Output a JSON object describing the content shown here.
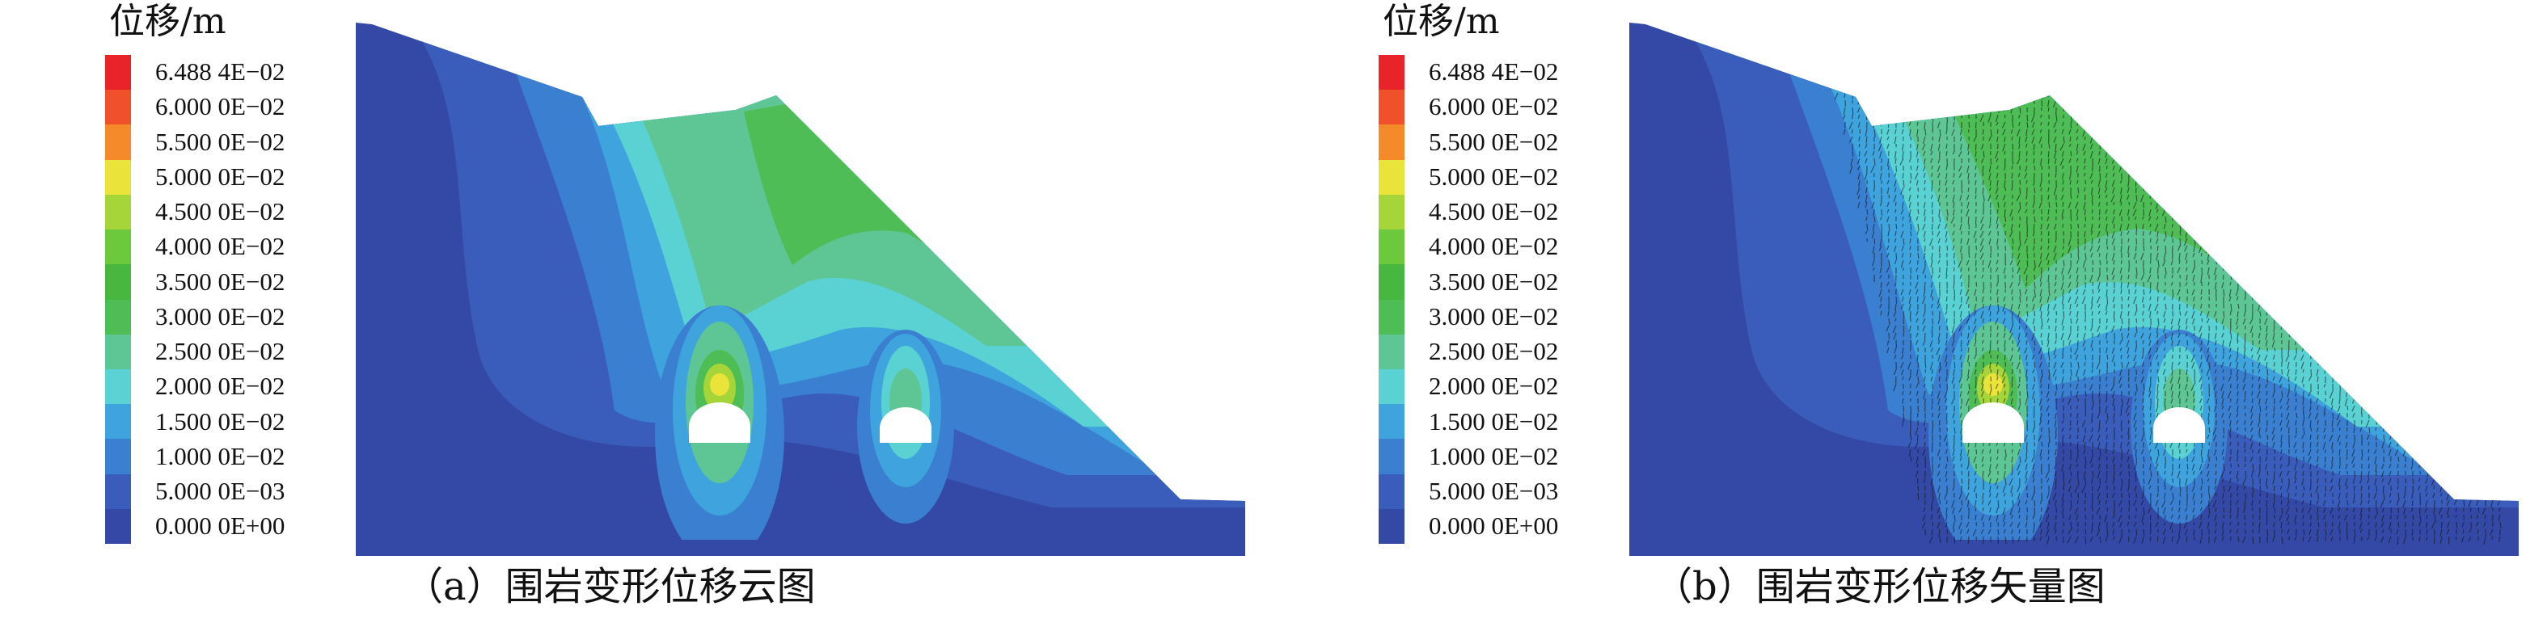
{
  "legend": {
    "title": "位移/m",
    "labels": [
      "6.488 4E−02",
      "6.000 0E−02",
      "5.500 0E−02",
      "5.000 0E−02",
      "4.500 0E−02",
      "4.000 0E−02",
      "3.500 0E−02",
      "3.000 0E−02",
      "2.500 0E−02",
      "2.000 0E−02",
      "1.500 0E−02",
      "1.000 0E−02",
      "5.000 0E−03",
      "0.000 0E+00"
    ],
    "colors": [
      "#e8232a",
      "#f0502a",
      "#f58a2b",
      "#e9e33a",
      "#a6d53a",
      "#6cc93c",
      "#48b73f",
      "#4fbd56",
      "#5ec694",
      "#5ad2d4",
      "#3fa3de",
      "#3a7fd0",
      "#3a5cba",
      "#3349a5"
    ]
  },
  "panels": [
    {
      "id": "a",
      "caption": "（a）围岩变形位移云图"
    },
    {
      "id": "b",
      "caption": "（b）围岩变形位移矢量图"
    }
  ]
}
